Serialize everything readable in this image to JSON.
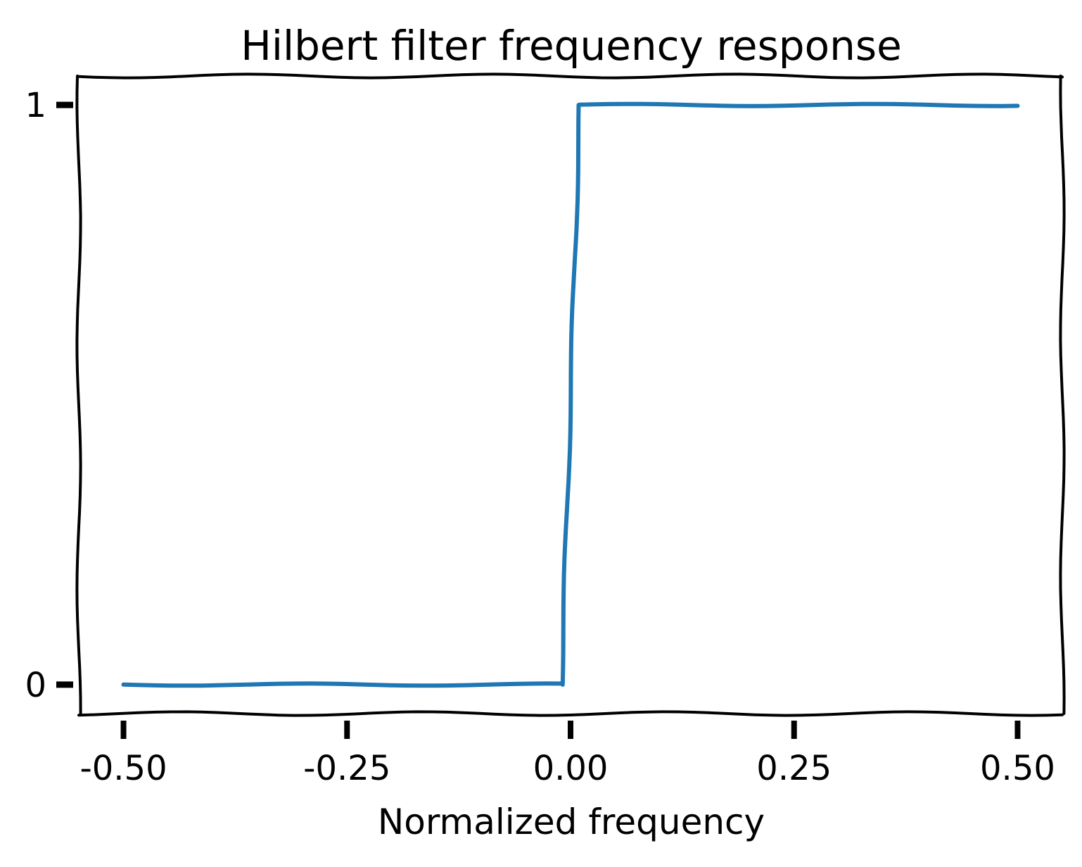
{
  "chart_data": {
    "type": "line",
    "title": "Hilbert filter frequency response",
    "xlabel": "Normalized frequency",
    "ylabel": "",
    "xlim": [
      -0.55,
      0.55
    ],
    "ylim": [
      -0.05,
      1.05
    ],
    "x_ticks": [
      -0.5,
      -0.25,
      0.0,
      0.25,
      0.5
    ],
    "x_tick_labels": [
      "-0.50",
      "-0.25",
      "0.00",
      "0.25",
      "0.50"
    ],
    "y_ticks": [
      0,
      1
    ],
    "y_tick_labels": [
      "0",
      "1"
    ],
    "grid": false,
    "series": [
      {
        "color": "#1f77b4",
        "x": [
          -0.5,
          -0.01,
          0.01,
          0.5
        ],
        "y": [
          0,
          0,
          1,
          1
        ]
      }
    ]
  }
}
